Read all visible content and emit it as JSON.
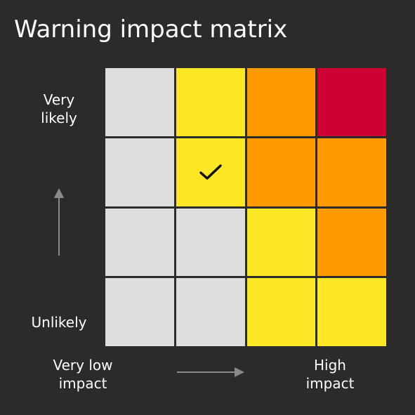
{
  "title": "Warning impact matrix",
  "axes": {
    "y_top": "Very\nlikely",
    "y_bottom": "Unlikely",
    "x_left": "Very low\nimpact",
    "x_right": "High\nimpact"
  },
  "colors": {
    "background": "#2b2b2b",
    "grey": "#dedede",
    "yellow": "#fee825",
    "amber": "#ff9b00",
    "red": "#cc0033",
    "check": "#111111",
    "arrow": "#8a8a8a"
  },
  "icons": {
    "check": "checkmark-icon",
    "up": "arrow-up-icon",
    "right": "arrow-right-icon"
  },
  "matrix": {
    "rows": [
      [
        "grey",
        "yellow",
        "amber",
        "red"
      ],
      [
        "grey",
        "yellow",
        "amber",
        "amber"
      ],
      [
        "grey",
        "grey",
        "yellow",
        "amber"
      ],
      [
        "grey",
        "grey",
        "yellow",
        "yellow"
      ]
    ],
    "selected": {
      "row": 1,
      "col": 1
    }
  }
}
